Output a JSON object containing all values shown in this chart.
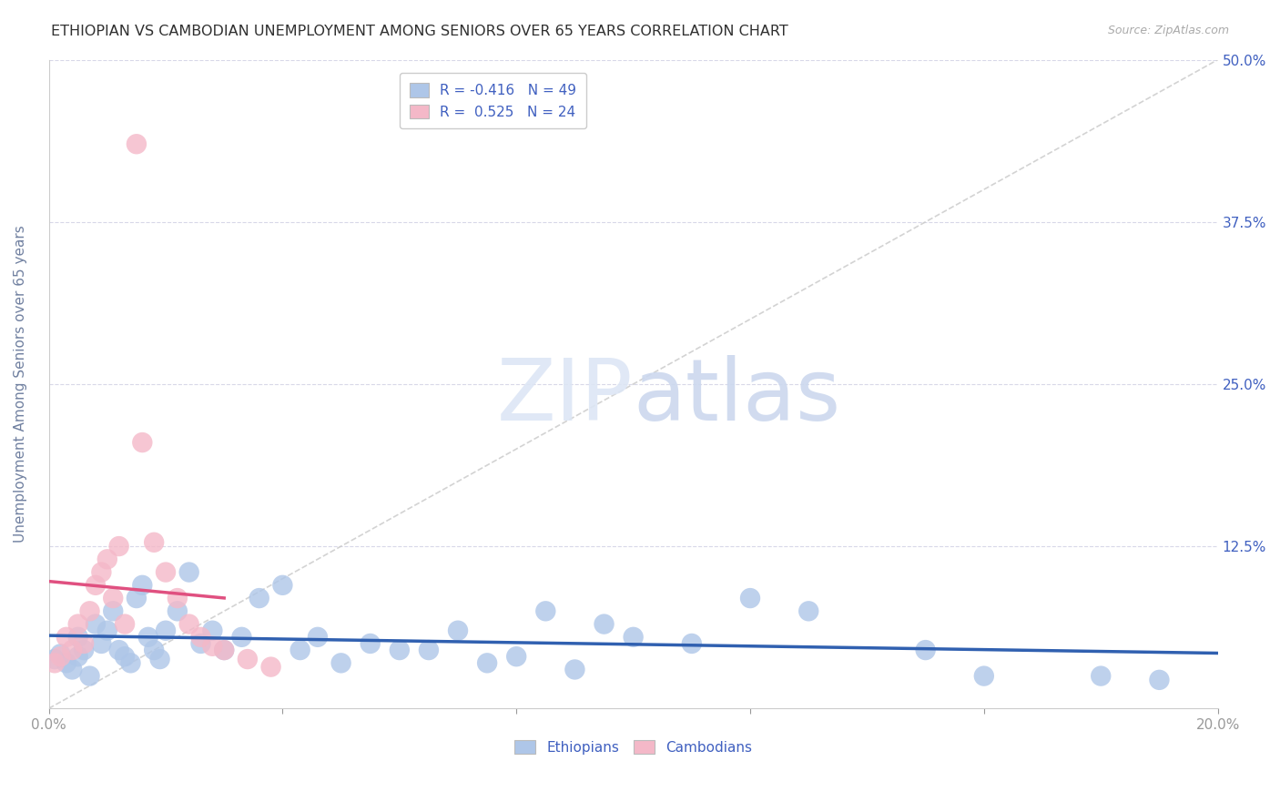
{
  "title": "ETHIOPIAN VS CAMBODIAN UNEMPLOYMENT AMONG SENIORS OVER 65 YEARS CORRELATION CHART",
  "source": "Source: ZipAtlas.com",
  "ylabel": "Unemployment Among Seniors over 65 years",
  "xlim": [
    0.0,
    0.2
  ],
  "ylim": [
    0.0,
    0.5
  ],
  "legend_entries": [
    {
      "label": "R = -0.416   N = 49",
      "color": "#aec6e8"
    },
    {
      "label": "R =  0.525   N = 24",
      "color": "#f4b8c8"
    }
  ],
  "blue_scatter_color": "#aec6e8",
  "pink_scatter_color": "#f4b8c8",
  "blue_line_color": "#3060b0",
  "pink_line_color": "#e05080",
  "diag_line_color": "#c8c8c8",
  "grid_color": "#d8d8e8",
  "title_color": "#303030",
  "axis_label_color": "#7080a0",
  "tick_label_color_blue": "#4060c0",
  "background_color": "#ffffff",
  "ethiopians_x": [
    0.001,
    0.002,
    0.003,
    0.004,
    0.005,
    0.005,
    0.006,
    0.007,
    0.008,
    0.009,
    0.01,
    0.011,
    0.012,
    0.013,
    0.014,
    0.015,
    0.016,
    0.017,
    0.018,
    0.019,
    0.02,
    0.022,
    0.024,
    0.026,
    0.028,
    0.03,
    0.033,
    0.036,
    0.04,
    0.043,
    0.046,
    0.05,
    0.055,
    0.06,
    0.065,
    0.07,
    0.075,
    0.08,
    0.085,
    0.09,
    0.095,
    0.1,
    0.11,
    0.12,
    0.13,
    0.15,
    0.16,
    0.18,
    0.19
  ],
  "ethiopians_y": [
    0.038,
    0.042,
    0.035,
    0.03,
    0.055,
    0.04,
    0.045,
    0.025,
    0.065,
    0.05,
    0.06,
    0.075,
    0.045,
    0.04,
    0.035,
    0.085,
    0.095,
    0.055,
    0.045,
    0.038,
    0.06,
    0.075,
    0.105,
    0.05,
    0.06,
    0.045,
    0.055,
    0.085,
    0.095,
    0.045,
    0.055,
    0.035,
    0.05,
    0.045,
    0.045,
    0.06,
    0.035,
    0.04,
    0.075,
    0.03,
    0.065,
    0.055,
    0.05,
    0.085,
    0.075,
    0.045,
    0.025,
    0.025,
    0.022
  ],
  "cambodians_x": [
    0.001,
    0.002,
    0.003,
    0.004,
    0.005,
    0.006,
    0.007,
    0.008,
    0.009,
    0.01,
    0.011,
    0.012,
    0.013,
    0.015,
    0.016,
    0.018,
    0.02,
    0.022,
    0.024,
    0.026,
    0.028,
    0.03,
    0.034,
    0.038
  ],
  "cambodians_y": [
    0.035,
    0.04,
    0.055,
    0.045,
    0.065,
    0.05,
    0.075,
    0.095,
    0.105,
    0.115,
    0.085,
    0.125,
    0.065,
    0.435,
    0.205,
    0.128,
    0.105,
    0.085,
    0.065,
    0.055,
    0.048,
    0.045,
    0.038,
    0.032
  ]
}
